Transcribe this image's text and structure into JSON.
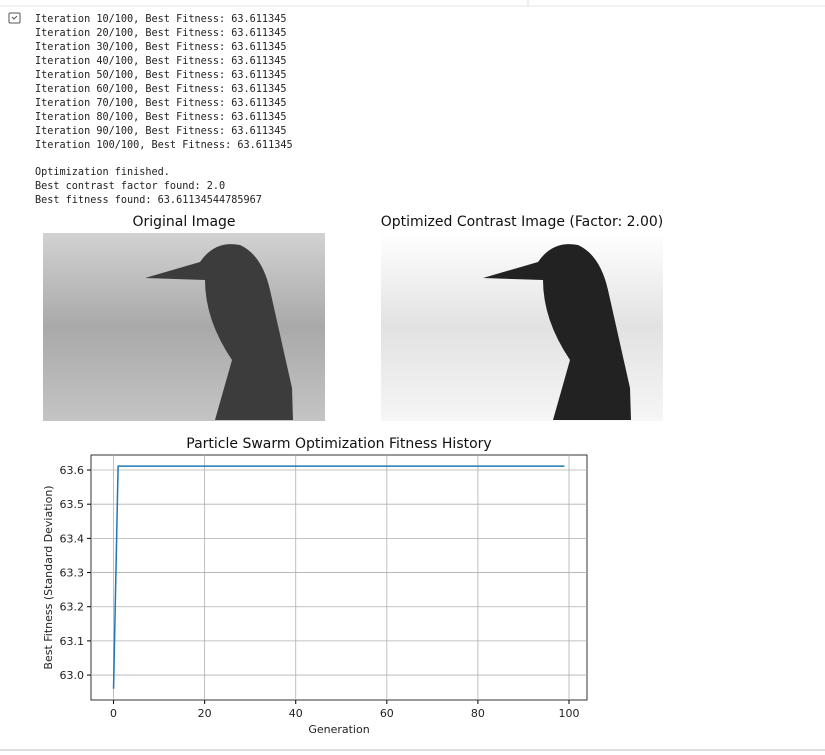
{
  "log": [
    "Iteration 10/100, Best Fitness: 63.611345",
    "Iteration 20/100, Best Fitness: 63.611345",
    "Iteration 30/100, Best Fitness: 63.611345",
    "Iteration 40/100, Best Fitness: 63.611345",
    "Iteration 50/100, Best Fitness: 63.611345",
    "Iteration 60/100, Best Fitness: 63.611345",
    "Iteration 70/100, Best Fitness: 63.611345",
    "Iteration 80/100, Best Fitness: 63.611345",
    "Iteration 90/100, Best Fitness: 63.611345",
    "Iteration 100/100, Best Fitness: 63.611345"
  ],
  "summary": [
    "Optimization finished.",
    "Best contrast factor found: 2.0",
    "Best fitness found: 63.61134544785967"
  ],
  "images": [
    {
      "title": "Original Image"
    },
    {
      "title": "Optimized Contrast Image (Factor: 2.00)"
    }
  ],
  "chart_data": {
    "type": "line",
    "title": "Particle Swarm Optimization Fitness History",
    "x_label": "Generation",
    "y_label": "Best Fitness (Standard Deviation)",
    "x": [
      0,
      1,
      2,
      3,
      4,
      5,
      6,
      7,
      8,
      9,
      10,
      11,
      12,
      13,
      14,
      15,
      16,
      17,
      18,
      19,
      20,
      21,
      22,
      23,
      24,
      25,
      26,
      27,
      28,
      29,
      30,
      31,
      32,
      33,
      34,
      35,
      36,
      37,
      38,
      39,
      40,
      41,
      42,
      43,
      44,
      45,
      46,
      47,
      48,
      49,
      50,
      51,
      52,
      53,
      54,
      55,
      56,
      57,
      58,
      59,
      60,
      61,
      62,
      63,
      64,
      65,
      66,
      67,
      68,
      69,
      70,
      71,
      72,
      73,
      74,
      75,
      76,
      77,
      78,
      79,
      80,
      81,
      82,
      83,
      84,
      85,
      86,
      87,
      88,
      89,
      90,
      91,
      92,
      93,
      94,
      95,
      96,
      97,
      98,
      99
    ],
    "series": [
      {
        "color": "#1f77b4",
        "values": [
          62.96,
          63.611345,
          63.611345,
          63.611345,
          63.611345,
          63.611345,
          63.611345,
          63.611345,
          63.611345,
          63.611345,
          63.611345,
          63.611345,
          63.611345,
          63.611345,
          63.611345,
          63.611345,
          63.611345,
          63.611345,
          63.611345,
          63.611345,
          63.611345,
          63.611345,
          63.611345,
          63.611345,
          63.611345,
          63.611345,
          63.611345,
          63.611345,
          63.611345,
          63.611345,
          63.611345,
          63.611345,
          63.611345,
          63.611345,
          63.611345,
          63.611345,
          63.611345,
          63.611345,
          63.611345,
          63.611345,
          63.611345,
          63.611345,
          63.611345,
          63.611345,
          63.611345,
          63.611345,
          63.611345,
          63.611345,
          63.611345,
          63.611345,
          63.611345,
          63.611345,
          63.611345,
          63.611345,
          63.611345,
          63.611345,
          63.611345,
          63.611345,
          63.611345,
          63.611345,
          63.611345,
          63.611345,
          63.611345,
          63.611345,
          63.611345,
          63.611345,
          63.611345,
          63.611345,
          63.611345,
          63.611345,
          63.611345,
          63.611345,
          63.611345,
          63.611345,
          63.611345,
          63.611345,
          63.611345,
          63.611345,
          63.611345,
          63.611345,
          63.611345,
          63.611345,
          63.611345,
          63.611345,
          63.611345,
          63.611345,
          63.611345,
          63.611345,
          63.611345,
          63.611345,
          63.611345,
          63.611345,
          63.611345,
          63.611345,
          63.611345,
          63.611345,
          63.611345,
          63.611345,
          63.611345,
          63.611345
        ]
      }
    ],
    "xlim": [
      -4.95,
      103.95
    ],
    "xticks": [
      0,
      20,
      40,
      60,
      80,
      100
    ],
    "ylim": [
      62.927,
      63.644
    ],
    "yticks": [
      {
        "value": 63,
        "label": "63.0"
      },
      63.1,
      63.2,
      63.3,
      63.4,
      63.5,
      63.6
    ],
    "grid": true
  }
}
